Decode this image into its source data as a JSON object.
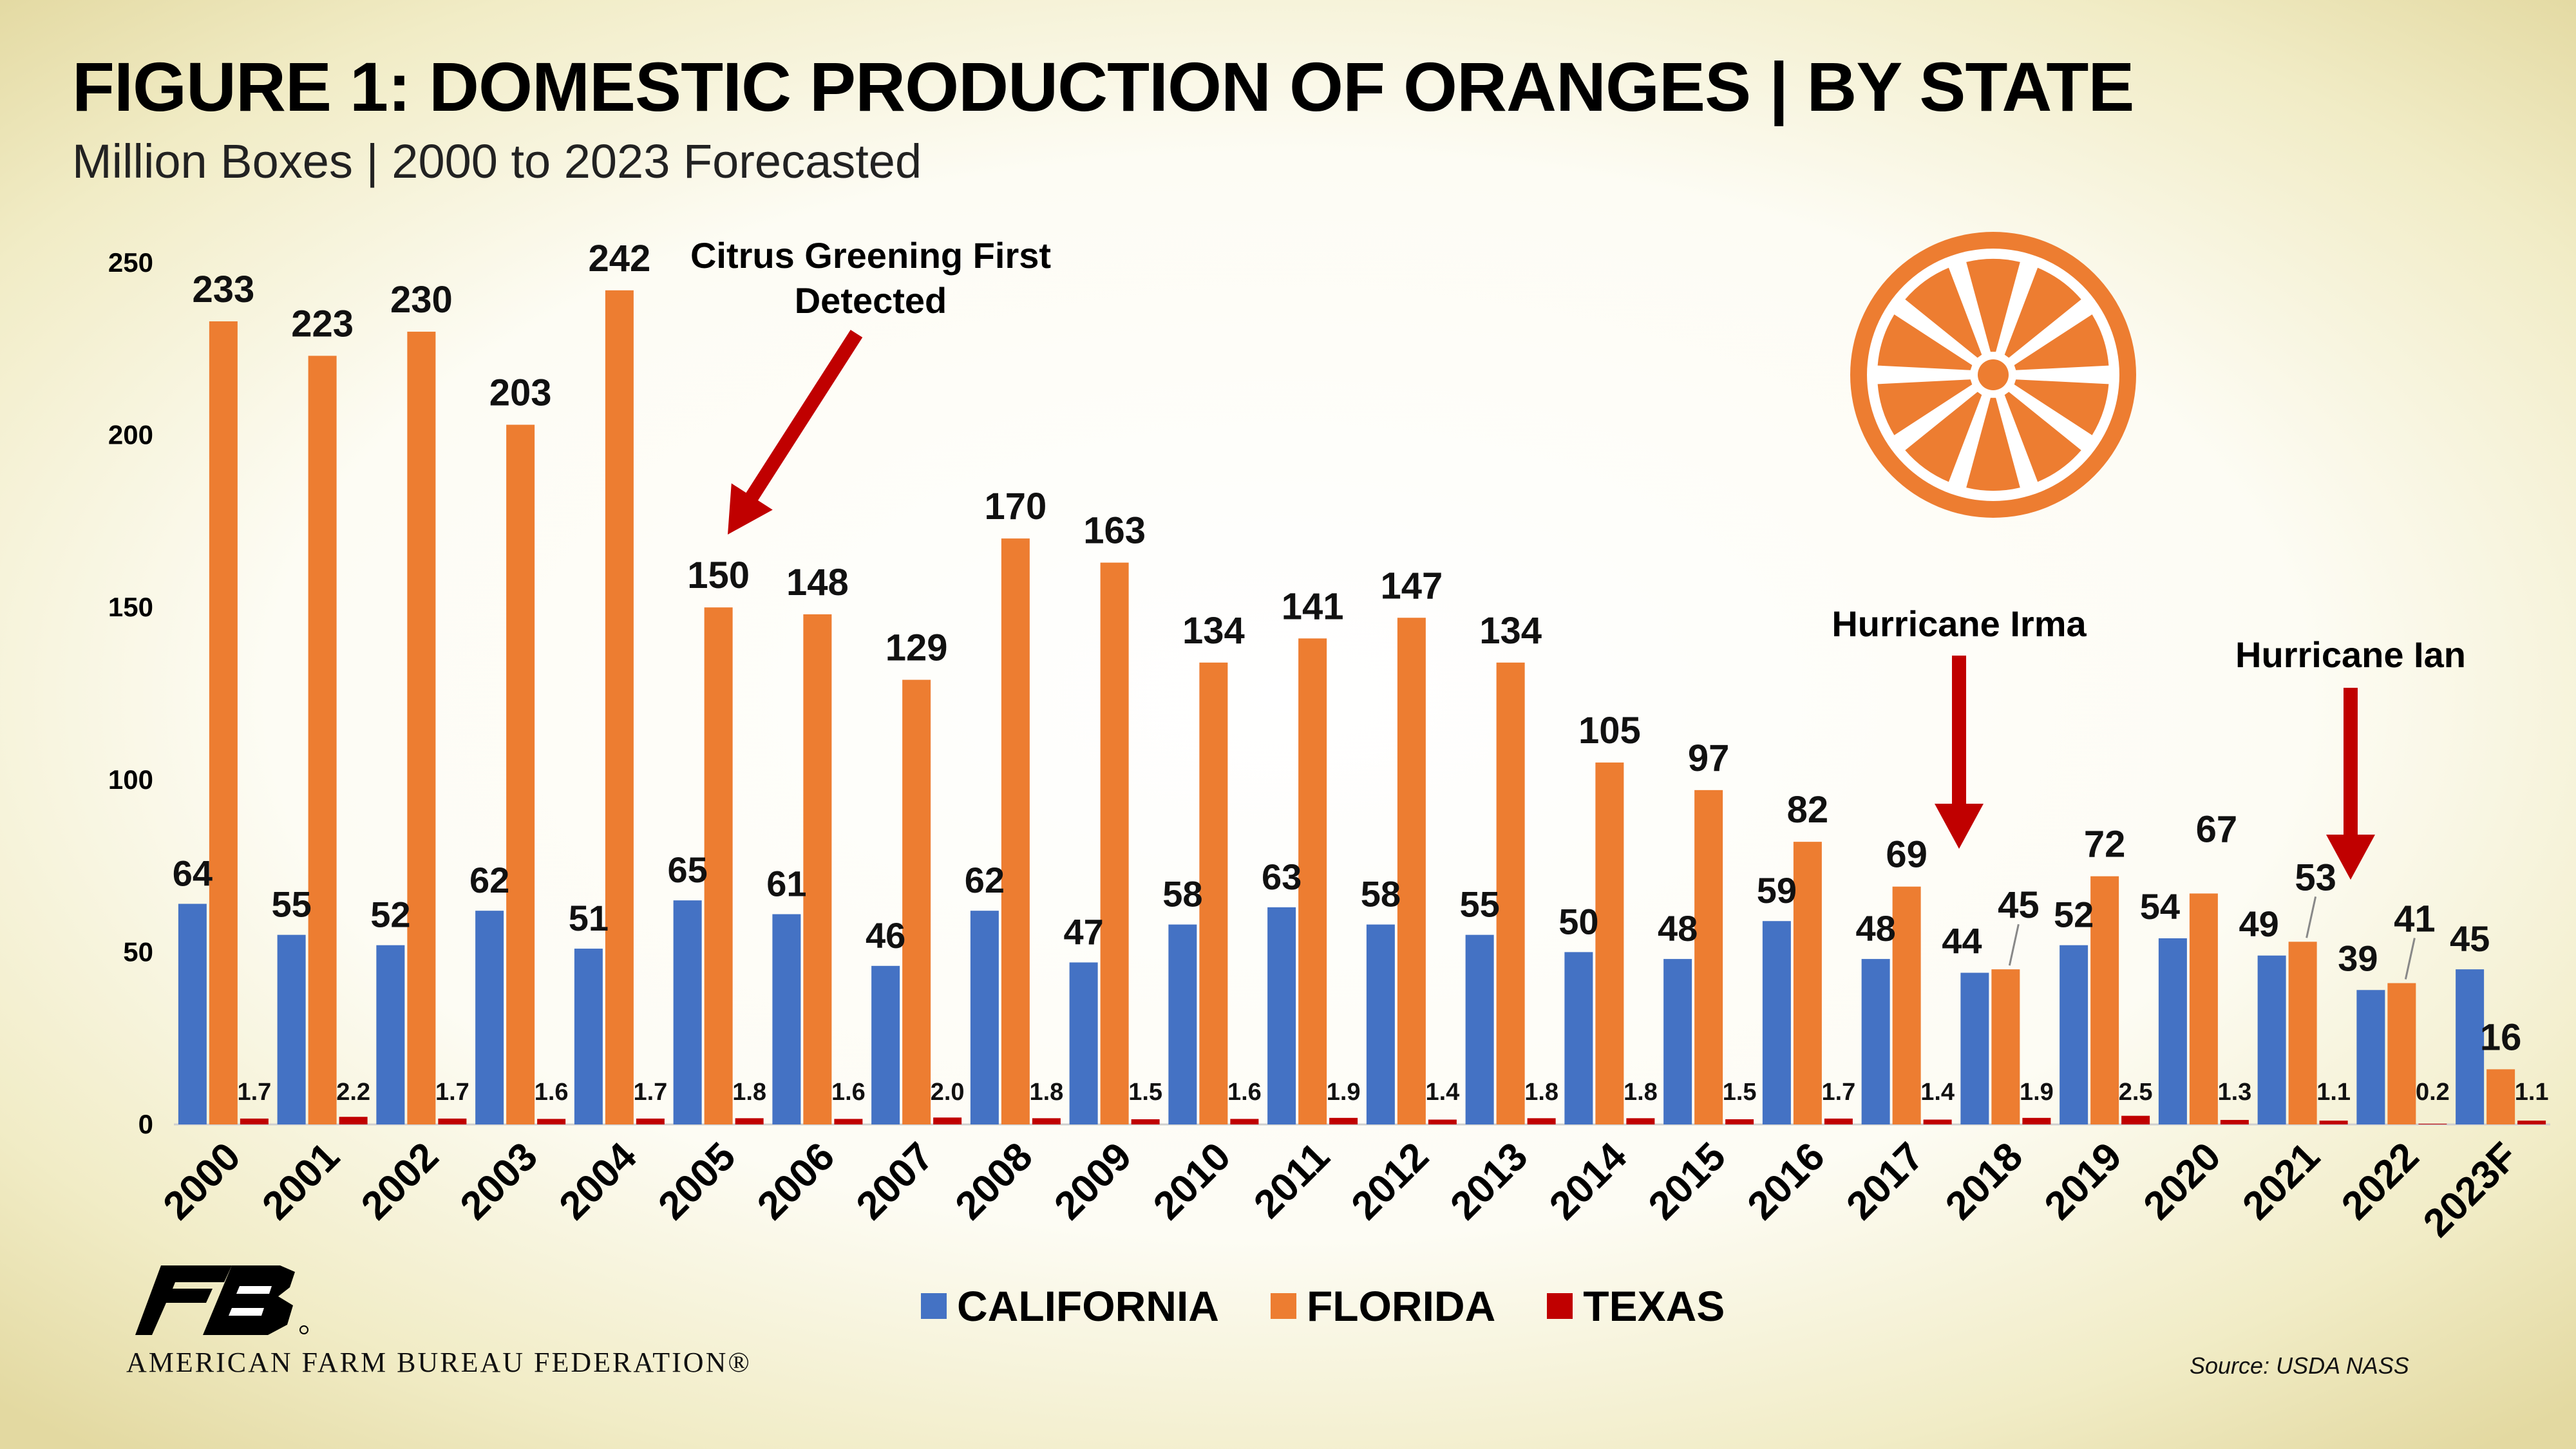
{
  "header": {
    "title": "FIGURE 1: DOMESTIC PRODUCTION OF ORANGES | BY STATE",
    "subtitle": "Million Boxes | 2000 to 2023 Forecasted"
  },
  "chart_data": {
    "type": "bar",
    "categories": [
      "2000",
      "2001",
      "2002",
      "2003",
      "2004",
      "2005",
      "2006",
      "2007",
      "2008",
      "2009",
      "2010",
      "2011",
      "2012",
      "2013",
      "2014",
      "2015",
      "2016",
      "2017",
      "2018",
      "2019",
      "2020",
      "2021",
      "2022",
      "2023F"
    ],
    "series": [
      {
        "name": "CALIFORNIA",
        "color": "#4472c4",
        "values": [
          64,
          55,
          52,
          62,
          51,
          65,
          61,
          46,
          62,
          47,
          58,
          63,
          58,
          55,
          50,
          48,
          59,
          48,
          44,
          52,
          54,
          49,
          39,
          45
        ]
      },
      {
        "name": "FLORIDA",
        "color": "#ed7d31",
        "values": [
          233,
          223,
          230,
          203,
          242,
          150,
          148,
          129,
          170,
          163,
          134,
          141,
          147,
          134,
          105,
          97,
          82,
          69,
          45,
          72,
          67,
          53,
          41,
          16
        ]
      },
      {
        "name": "TEXAS",
        "color": "#c00000",
        "values": [
          1.7,
          2.2,
          1.7,
          1.6,
          1.7,
          1.8,
          1.6,
          2.0,
          1.8,
          1.5,
          1.6,
          1.9,
          1.4,
          1.8,
          1.8,
          1.5,
          1.7,
          1.4,
          1.9,
          2.5,
          1.3,
          1.1,
          0.2,
          1.1
        ]
      }
    ],
    "data_labels": {
      "CALIFORNIA": [
        "64",
        "55",
        "52",
        "62",
        "51",
        "65",
        "61",
        "46",
        "62",
        "47",
        "58",
        "63",
        "58",
        "55",
        "50",
        "48",
        "59",
        "48",
        "44",
        "52",
        "54",
        "49",
        "39",
        "45"
      ],
      "FLORIDA": [
        "233",
        "223",
        "230",
        "203",
        "242",
        "150",
        "148",
        "129",
        "170",
        "163",
        "134",
        "141",
        "147",
        "134",
        "105",
        "97",
        "82",
        "69",
        "45",
        "72",
        "67",
        "53",
        "41",
        "16"
      ],
      "TEXAS": [
        "1.7",
        "2.2",
        "1.7",
        "1.6",
        "1.7",
        "1.8",
        "1.6",
        "2.0",
        "1.8",
        "1.5",
        "1.6",
        "1.9",
        "1.4",
        "1.8",
        "1.8",
        "1.5",
        "1.7",
        "1.4",
        "1.9",
        "2.5",
        "1.3",
        "1.1",
        "0.2",
        "1.1"
      ]
    },
    "ylim": [
      0,
      250
    ],
    "yticks": [
      "0",
      "50",
      "100",
      "150",
      "200",
      "250"
    ],
    "legend": "bottom",
    "grid": false,
    "annotations": [
      {
        "text_lines": [
          "Citrus Greening First",
          "Detected"
        ],
        "category": "2005"
      },
      {
        "text_lines": [
          "Hurricane Irma"
        ],
        "category": "2018"
      },
      {
        "text_lines": [
          "Hurricane Ian"
        ],
        "category": "2022"
      }
    ]
  },
  "footer": {
    "organization": "AMERICAN FARM BUREAU FEDERATION®",
    "source": "Source: USDA NASS"
  },
  "colors": {
    "california": "#4472c4",
    "florida": "#ed7d31",
    "texas": "#c00000",
    "arrow": "#c00000",
    "orange_icon": "#ed7d31"
  },
  "icons": {
    "orange_slice": "orange-slice-icon",
    "logo": "fb-logo-icon"
  }
}
